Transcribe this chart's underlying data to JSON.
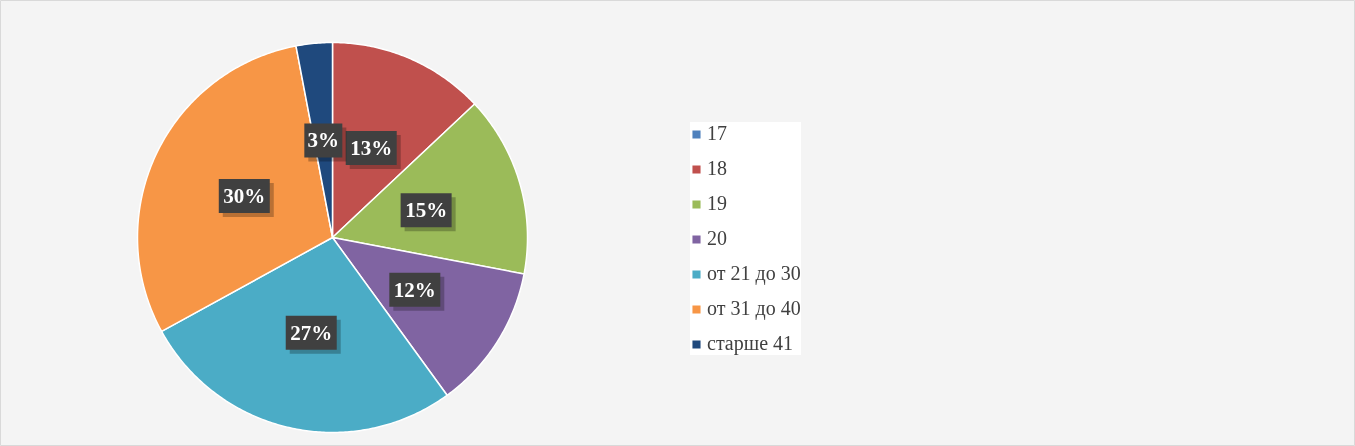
{
  "chart_data": {
    "type": "pie",
    "categories": [
      "17",
      "18",
      "19",
      "20",
      "от 21 до 30",
      "от 31 до 40",
      "старше 41"
    ],
    "values": [
      0,
      13,
      15,
      12,
      27,
      30,
      3
    ],
    "colors": [
      "#4f81bd",
      "#c0504d",
      "#9bbb59",
      "#8064a2",
      "#4bacc6",
      "#f79646",
      "#1f497d"
    ],
    "value_labels": [
      null,
      "13%",
      "15%",
      "12%",
      "27%",
      "30%",
      "3%"
    ],
    "legend": "right"
  }
}
